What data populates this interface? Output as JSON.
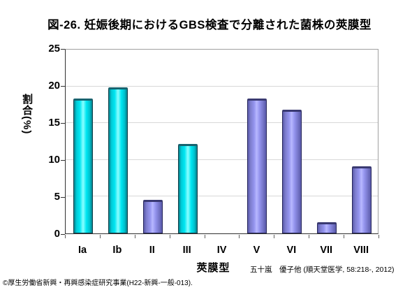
{
  "title": "図-26. 妊娠後期におけるGBS検査で分離された菌株の莢膜型",
  "citation": "五十嵐　優子他 (順天堂医学, 58:218-, 2012)",
  "footer": "©厚生労働省新興・再興感染症研究事業(H22-新興-一般-013).",
  "chart_data": {
    "type": "bar",
    "title": "図-26. 妊娠後期におけるGBS検査で分離された菌株の莢膜型",
    "categories": [
      "Ia",
      "Ib",
      "II",
      "III",
      "IV",
      "V",
      "VI",
      "VII",
      "VIII"
    ],
    "values": [
      18.2,
      19.7,
      4.5,
      12.1,
      0,
      18.2,
      16.7,
      1.5,
      9.1
    ],
    "bar_color_keys": [
      "cyan",
      "cyan",
      "purple",
      "cyan",
      "none",
      "purple",
      "purple",
      "purple",
      "purple"
    ],
    "xlabel": "莢膜型",
    "ylabel": "割合(%)",
    "ylim": [
      0,
      25
    ],
    "yticks": [
      0,
      5,
      10,
      15,
      20,
      25
    ],
    "grid": true,
    "legend": "none",
    "colors": {
      "cyan_edge": "#067f8a",
      "cyan_mid": "#00e6f2",
      "cyan_highlight": "#8dffff",
      "cyan_outline": "#143f4a",
      "cyan_cap": "#176470",
      "purple_edge": "#5a5aaa",
      "purple_mid": "#9494ee",
      "purple_highlight": "#b8b8ff",
      "purple_outline": "#26265a",
      "purple_cap": "#3a3a72",
      "gridline": "#d8d8d8",
      "axis": "#303030",
      "frame": "#a0a0a0",
      "background": "#ffffff"
    }
  }
}
